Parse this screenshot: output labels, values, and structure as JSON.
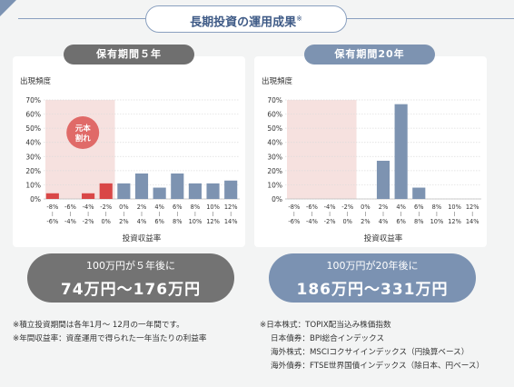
{
  "title": "長期投資の運用成果",
  "title_mark": "※",
  "colors": {
    "accent": "#7c93b3",
    "bar_gray_left": "#7d93b1",
    "bar_red": "#d94747",
    "loss_zone": "#f6e1df",
    "pill_gray": "#737373",
    "pill_blue": "#7b92b2",
    "tab_gray": "#6f6f6f"
  },
  "panels": [
    {
      "tab_label": "保有期間５年",
      "ylabel": "出現頻度",
      "xlabel": "投資収益率",
      "badge_text": "元本割れ",
      "result_line1": "100万円が５年後に",
      "result_line2": "74万円〜176万円"
    },
    {
      "tab_label": "保有期間20年",
      "ylabel": "出現頻度",
      "xlabel": "投資収益率",
      "result_line1": "100万円が20年後に",
      "result_line2": "186万円〜331万円"
    }
  ],
  "chart_data": [
    {
      "type": "bar",
      "title": "保有期間５年",
      "xlabel": "投資収益率",
      "ylabel": "出現頻度",
      "ylim": [
        0,
        70
      ],
      "yticks": [
        "0%",
        "10%",
        "20%",
        "30%",
        "40%",
        "50%",
        "60%",
        "70%"
      ],
      "categories": [
        [
          "-8%",
          "-6%"
        ],
        [
          "-6%",
          "-4%"
        ],
        [
          "-4%",
          "-2%"
        ],
        [
          "-2%",
          "0%"
        ],
        [
          "0%",
          "2%"
        ],
        [
          "2%",
          "4%"
        ],
        [
          "4%",
          "6%"
        ],
        [
          "6%",
          "8%"
        ],
        [
          "8%",
          "10%"
        ],
        [
          "10%",
          "12%"
        ],
        [
          "12%",
          "14%"
        ]
      ],
      "values": [
        4,
        0,
        4,
        11,
        11,
        18,
        8,
        18,
        11,
        11,
        13
      ],
      "bar_colors": [
        "#d94747",
        "#d94747",
        "#d94747",
        "#d94747",
        "#7d93b1",
        "#7d93b1",
        "#7d93b1",
        "#7d93b1",
        "#7d93b1",
        "#7d93b1",
        "#7d93b1"
      ],
      "loss_zone_categories": 4,
      "loss_zone_max": 70,
      "grid": true
    },
    {
      "type": "bar",
      "title": "保有期間20年",
      "xlabel": "投資収益率",
      "ylabel": "出現頻度",
      "ylim": [
        0,
        70
      ],
      "yticks": [
        "0%",
        "10%",
        "20%",
        "30%",
        "40%",
        "50%",
        "60%",
        "70%"
      ],
      "categories": [
        [
          "-8%",
          "-6%"
        ],
        [
          "-6%",
          "-4%"
        ],
        [
          "-4%",
          "-2%"
        ],
        [
          "-2%",
          "0%"
        ],
        [
          "0%",
          "2%"
        ],
        [
          "2%",
          "4%"
        ],
        [
          "4%",
          "6%"
        ],
        [
          "6%",
          "8%"
        ],
        [
          "8%",
          "10%"
        ],
        [
          "10%",
          "12%"
        ],
        [
          "12%",
          "14%"
        ]
      ],
      "values": [
        0,
        0,
        0,
        0,
        0,
        27,
        67,
        8,
        0,
        0,
        0
      ],
      "bar_colors": [
        "#7d93b1",
        "#7d93b1",
        "#7d93b1",
        "#7d93b1",
        "#7d93b1",
        "#7d93b1",
        "#7d93b1",
        "#7d93b1",
        "#7d93b1",
        "#7d93b1",
        "#7d93b1"
      ],
      "loss_zone_categories": 4,
      "loss_zone_max": 70,
      "grid": true
    }
  ],
  "notes_left": [
    "※積立投資期間は各年1月〜 12月の一年間です。",
    "※年間収益率：資産運用で得られた一年当たりの利益率"
  ],
  "notes_right": [
    "※日本株式：TOPIX配当込み株価指数",
    "日本債券：BPI総合インデックス",
    "海外株式：MSCIコクサイインデックス（円換算ベース）",
    "海外債券：FTSE世界国債インデックス（除日本、円ベース）"
  ]
}
